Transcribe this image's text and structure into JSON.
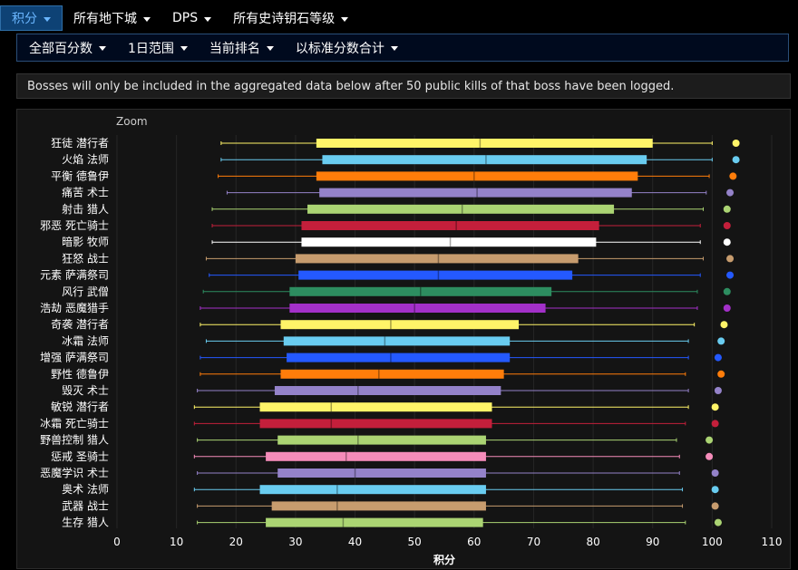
{
  "nav": {
    "top": [
      {
        "label": "积分",
        "active": true
      },
      {
        "label": "所有地下城",
        "active": false
      },
      {
        "label": "DPS",
        "active": false
      },
      {
        "label": "所有史诗钥石等级",
        "active": false
      }
    ],
    "sub": [
      {
        "label": "全部百分数"
      },
      {
        "label": "1日范围"
      },
      {
        "label": "当前排名"
      },
      {
        "label": "以标准分数合计"
      }
    ]
  },
  "notice": "Bosses will only be included in the aggregated data below after 50 public kills of that boss have been logged.",
  "zoom_label": "Zoom",
  "chart_data": {
    "type": "boxplot",
    "title": "",
    "xlabel": "积分",
    "ylabel": "",
    "xlim": [
      0,
      110
    ],
    "xticks": [
      0,
      10,
      20,
      30,
      40,
      50,
      60,
      70,
      80,
      90,
      100,
      110
    ],
    "grid": true,
    "legend": "none",
    "series": [
      {
        "label": "狂徒 潜行者",
        "color": "#fff468",
        "min": 17.5,
        "q1": 33.5,
        "median": 61,
        "q3": 90,
        "max": 100,
        "outlier": 104
      },
      {
        "label": "火焰 法师",
        "color": "#69ccf0",
        "min": 17.5,
        "q1": 34.5,
        "median": 62,
        "q3": 89,
        "max": 100,
        "outlier": 104
      },
      {
        "label": "平衡 德鲁伊",
        "color": "#ff7d0a",
        "min": 17,
        "q1": 33.5,
        "median": 60,
        "q3": 87.5,
        "max": 99.5,
        "outlier": 103.5
      },
      {
        "label": "痛苦 术士",
        "color": "#9482c9",
        "min": 18.5,
        "q1": 34,
        "median": 60.5,
        "q3": 86.5,
        "max": 99,
        "outlier": 103
      },
      {
        "label": "射击 猎人",
        "color": "#abd473",
        "min": 16,
        "q1": 32,
        "median": 58,
        "q3": 83.5,
        "max": 98.5,
        "outlier": 102.5
      },
      {
        "label": "邪恶 死亡骑士",
        "color": "#c41f3b",
        "min": 16,
        "q1": 31,
        "median": 57,
        "q3": 81,
        "max": 98,
        "outlier": 102.5
      },
      {
        "label": "暗影 牧师",
        "color": "#ffffff",
        "min": 16,
        "q1": 31,
        "median": 56,
        "q3": 80.5,
        "max": 98,
        "outlier": 102.5
      },
      {
        "label": "狂怒 战士",
        "color": "#c79c6e",
        "min": 15,
        "q1": 30,
        "median": 54,
        "q3": 77.5,
        "max": 98.5,
        "outlier": 103
      },
      {
        "label": "元素 萨满祭司",
        "color": "#2459ff",
        "min": 15.5,
        "q1": 30.5,
        "median": 54,
        "q3": 76.5,
        "max": 98,
        "outlier": 103
      },
      {
        "label": "风行 武僧",
        "color": "#2d8d60",
        "min": 14.5,
        "q1": 29,
        "median": 51,
        "q3": 73,
        "max": 97.5,
        "outlier": 102.5
      },
      {
        "label": "浩劫 恶魔猎手",
        "color": "#a330c9",
        "min": 14,
        "q1": 29,
        "median": 50,
        "q3": 72,
        "max": 97.5,
        "outlier": 102.5
      },
      {
        "label": "奇袭 潜行者",
        "color": "#fff468",
        "min": 14,
        "q1": 27.5,
        "median": 46,
        "q3": 67.5,
        "max": 97,
        "outlier": 102
      },
      {
        "label": "冰霜 法师",
        "color": "#69ccf0",
        "min": 15,
        "q1": 28,
        "median": 45,
        "q3": 66,
        "max": 96,
        "outlier": 101.5
      },
      {
        "label": "增强 萨满祭司",
        "color": "#2459ff",
        "min": 14,
        "q1": 28.5,
        "median": 46,
        "q3": 66,
        "max": 96,
        "outlier": 101
      },
      {
        "label": "野性 德鲁伊",
        "color": "#ff7d0a",
        "min": 14,
        "q1": 27.5,
        "median": 44,
        "q3": 65,
        "max": 95.5,
        "outlier": 101.5
      },
      {
        "label": "毁灭 术士",
        "color": "#9482c9",
        "min": 13.5,
        "q1": 26.5,
        "median": 40.5,
        "q3": 64.5,
        "max": 96,
        "outlier": 101
      },
      {
        "label": "敏锐 潜行者",
        "color": "#fff468",
        "min": 13,
        "q1": 24,
        "median": 36,
        "q3": 63,
        "max": 96,
        "outlier": 100.5
      },
      {
        "label": "冰霜 死亡骑士",
        "color": "#c41f3b",
        "min": 13,
        "q1": 24,
        "median": 36,
        "q3": 63,
        "max": 95.5,
        "outlier": 100.5
      },
      {
        "label": "野兽控制 猎人",
        "color": "#abd473",
        "min": 13.5,
        "q1": 27,
        "median": 40.5,
        "q3": 62,
        "max": 94,
        "outlier": 99.5
      },
      {
        "label": "惩戒 圣骑士",
        "color": "#f58cba",
        "min": 13,
        "q1": 25,
        "median": 38.5,
        "q3": 62,
        "max": 94.5,
        "outlier": 99.5
      },
      {
        "label": "恶魔学识 术士",
        "color": "#9482c9",
        "min": 13.5,
        "q1": 27,
        "median": 40,
        "q3": 62,
        "max": 94.5,
        "outlier": 100.5
      },
      {
        "label": "奥术 法师",
        "color": "#69ccf0",
        "min": 13,
        "q1": 24,
        "median": 37,
        "q3": 62,
        "max": 95,
        "outlier": 100.5
      },
      {
        "label": "武器 战士",
        "color": "#c79c6e",
        "min": 13.5,
        "q1": 26,
        "median": 37,
        "q3": 62,
        "max": 95,
        "outlier": 100.5
      },
      {
        "label": "生存 猎人",
        "color": "#abd473",
        "min": 13.5,
        "q1": 25,
        "median": 38,
        "q3": 61.5,
        "max": 95.5,
        "outlier": 101
      }
    ]
  }
}
